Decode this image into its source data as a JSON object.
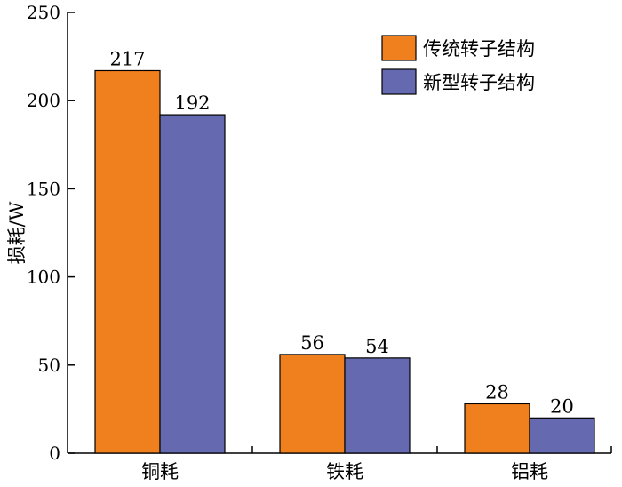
{
  "chart_data": {
    "type": "bar",
    "categories": [
      "铜耗",
      "铁耗",
      "铝耗"
    ],
    "series": [
      {
        "name": "传统转子结构",
        "values": [
          217,
          56,
          28
        ],
        "color": "#F07F1E"
      },
      {
        "name": "新型转子结构",
        "values": [
          192,
          54,
          20
        ],
        "color": "#6469B0"
      }
    ],
    "ylabel": "损耗/W",
    "xlabel": "",
    "ylim": [
      0,
      250
    ],
    "yticks": [
      0,
      50,
      100,
      150,
      200,
      250
    ],
    "grid": false,
    "legend_position": "top-right",
    "data_labels": true
  }
}
